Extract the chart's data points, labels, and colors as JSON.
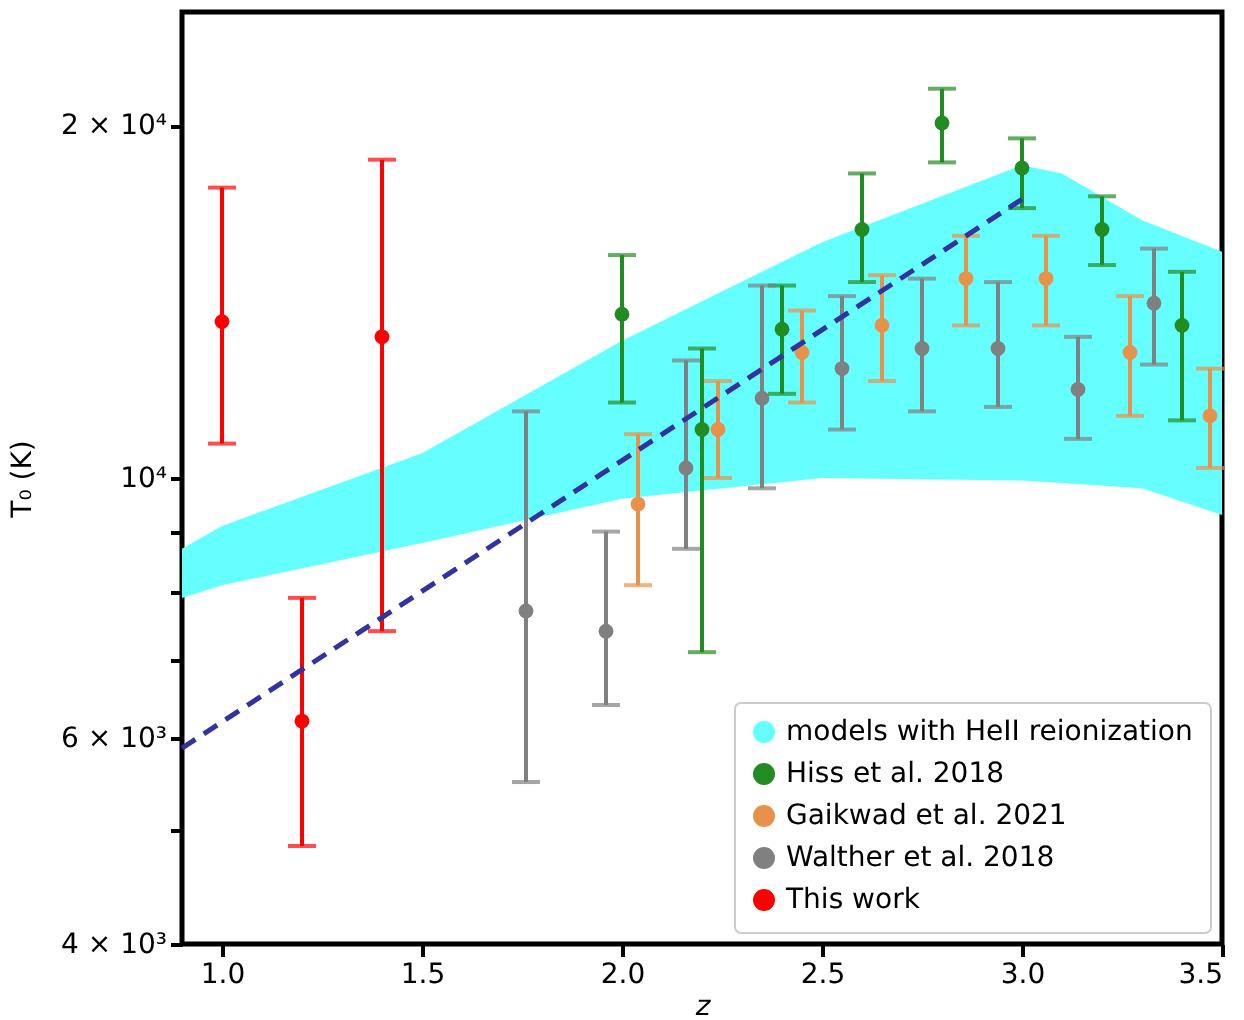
{
  "chart_data": {
    "type": "scatter",
    "xlabel": "z",
    "ylabel": "T₀ (K)",
    "log": "y",
    "grid": false,
    "legend": "bottom right",
    "marker": "circle",
    "xlim": [
      0.9,
      3.5
    ],
    "xticks": [
      {
        "value": 1,
        "label": "1.0"
      },
      {
        "value": 1.5,
        "label": "1.5"
      },
      {
        "value": 2,
        "label": "2.0"
      },
      {
        "value": 2.5,
        "label": "2.5"
      },
      {
        "value": 3,
        "label": "3.0"
      },
      {
        "value": 3.5,
        "label": "3.5"
      }
    ],
    "ylim": [
      4000,
      25000
    ],
    "yticks": [
      {
        "value": 4000,
        "label": "4 × 10³"
      },
      {
        "value": 5000,
        "label": null
      },
      {
        "value": 6000,
        "label": "6 × 10³"
      },
      {
        "value": 7000,
        "label": null
      },
      {
        "value": 8000,
        "label": null
      },
      {
        "value": 9000,
        "label": null
      },
      {
        "value": 10000,
        "label": "10⁴"
      },
      {
        "value": 20000,
        "label": "2 × 10⁴"
      }
    ],
    "series": [
      {
        "name": "models with HeII reionization",
        "type": "line",
        "marker": "none",
        "color": "#66ffff",
        "x": [
          0.9,
          1.0,
          1.5,
          2.0,
          2.5,
          3.0,
          3.1,
          3.3,
          3.5
        ],
        "values": [
          null,
          null,
          null,
          null,
          null,
          null,
          null,
          null,
          null
        ],
        "lower": [
          7900,
          8100,
          8800,
          9600,
          10000,
          9950,
          9900,
          9800,
          9300
        ],
        "upper": [
          8700,
          9100,
          10500,
          13100,
          15900,
          18500,
          18200,
          16600,
          15600
        ]
      },
      {
        "name": "Hiss et al. 2018",
        "color": "#228b22",
        "x": [
          2.0,
          2.2,
          2.4,
          2.6,
          2.8,
          3.0,
          3.2,
          3.4
        ],
        "values": [
          13800,
          11000,
          13400,
          16300,
          20100,
          18400,
          16300,
          13500
        ],
        "errors": [
          [
            11600,
            15500
          ],
          [
            7100,
            12900
          ],
          [
            11800,
            14600
          ],
          [
            14700,
            18200
          ],
          [
            18600,
            21500
          ],
          [
            17000,
            19500
          ],
          [
            15200,
            17400
          ],
          [
            11200,
            15000
          ]
        ]
      },
      {
        "name": "Gaikwad et al. 2021",
        "color": "#e8914a",
        "x": [
          2.04,
          2.24,
          2.45,
          2.65,
          2.86,
          3.06,
          3.27,
          3.47
        ],
        "values": [
          9500,
          11000,
          12800,
          13500,
          14800,
          14800,
          12800,
          11300
        ],
        "errors": [
          [
            8100,
            10900
          ],
          [
            10000,
            12100
          ],
          [
            11600,
            13900
          ],
          [
            12100,
            14900
          ],
          [
            13500,
            16100
          ],
          [
            13500,
            16100
          ],
          [
            11300,
            14300
          ],
          [
            10200,
            12400
          ]
        ]
      },
      {
        "name": "Walther et al. 2018",
        "color": "#808080",
        "x": [
          1.76,
          1.96,
          2.16,
          2.35,
          2.55,
          2.75,
          2.94,
          3.14,
          3.33
        ],
        "values": [
          7700,
          7400,
          10200,
          11700,
          12400,
          12900,
          12900,
          11900,
          14100
        ],
        "errors": [
          [
            5500,
            11400
          ],
          [
            6400,
            9000
          ],
          [
            8700,
            12600
          ],
          [
            9800,
            14600
          ],
          [
            11000,
            14300
          ],
          [
            11400,
            14800
          ],
          [
            11500,
            14700
          ],
          [
            10800,
            13200
          ],
          [
            12500,
            15700
          ]
        ]
      },
      {
        "name": "This work",
        "color": "#ff0000",
        "x": [
          1.0,
          1.2,
          1.4
        ],
        "values": [
          13600,
          6200,
          13200
        ],
        "errors": [
          [
            10700,
            17700
          ],
          [
            4850,
            7900
          ],
          [
            7400,
            18700
          ]
        ]
      },
      {
        "type": "line",
        "color": "#3333a0",
        "line_style": "dashed",
        "marker": "none",
        "x": [
          0.9,
          3.0
        ],
        "values": [
          5880,
          17300
        ]
      }
    ]
  }
}
